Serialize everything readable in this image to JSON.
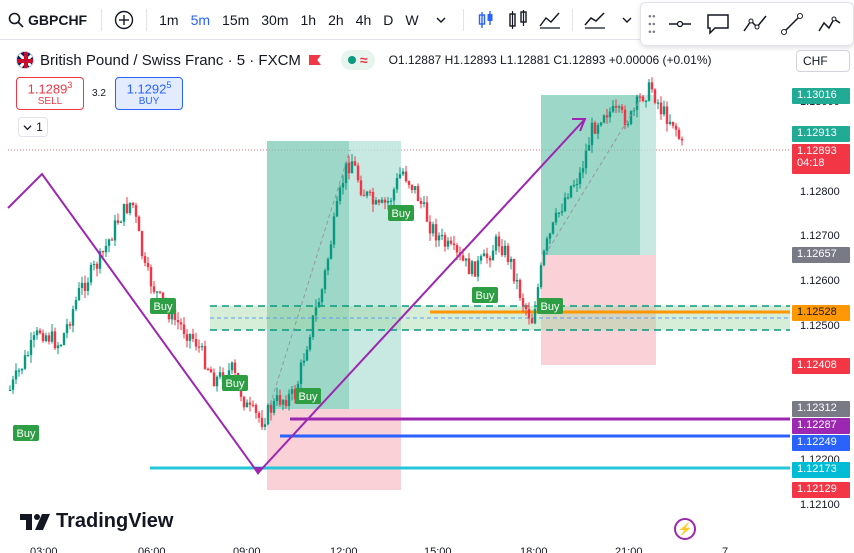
{
  "toolbar": {
    "symbol": "GBPCHF",
    "intervals": [
      "1m",
      "5m",
      "15m",
      "30m",
      "1h",
      "2h",
      "4h",
      "D",
      "W"
    ],
    "active_interval": "5m"
  },
  "legend": {
    "title": "British Pound / Swiss Franc · 5 · FXCM",
    "ohlc": "O1.12887  H1.12893  L1.12881  C1.12893  +0.00006 (+0.01%)"
  },
  "trade": {
    "sell_price_main": "1.1289",
    "sell_price_sup": "3",
    "sell_label": "SELL",
    "spread": "3.2",
    "buy_price_main": "1.1292",
    "buy_price_sup": "5",
    "buy_label": "BUY",
    "lots": "1"
  },
  "currency": "CHF",
  "price_ticks": [
    "1.13000",
    "1.12800",
    "1.12700",
    "1.12600",
    "1.12500",
    "1.12200",
    "1.12100"
  ],
  "price_labels": [
    {
      "text": "1.13016",
      "color": "#22ab94"
    },
    {
      "text": "1.12913",
      "color": "#22ab94"
    },
    {
      "text": "1.12893",
      "sub": "04:18",
      "color": "#f23645"
    },
    {
      "text": "1.12657",
      "color": "#787b86"
    },
    {
      "text": "1.12528",
      "color": "#ff9800",
      "dark": true
    },
    {
      "text": "1.12408",
      "color": "#f23645"
    },
    {
      "text": "1.12312",
      "color": "#787b86"
    },
    {
      "text": "1.12287",
      "color": "#9c27b0"
    },
    {
      "text": "1.12249",
      "color": "#2962ff"
    },
    {
      "text": "1.12173",
      "color": "#00bcd4"
    },
    {
      "text": "1.12129",
      "color": "#f23645"
    }
  ],
  "signals": [
    {
      "label": "Buy"
    },
    {
      "label": "Buy"
    },
    {
      "label": "Buy"
    },
    {
      "label": "Buy"
    },
    {
      "label": "Buy"
    },
    {
      "label": "Buy"
    },
    {
      "label": "Buy"
    }
  ],
  "time_labels": [
    "03:00",
    "06:00",
    "09:00",
    "12:00",
    "15:00",
    "18:00",
    "21:00",
    "7"
  ],
  "logo_text": "TradingView",
  "colors": {
    "up": "#089981",
    "down": "#f23645",
    "accent": "#2962ff"
  }
}
